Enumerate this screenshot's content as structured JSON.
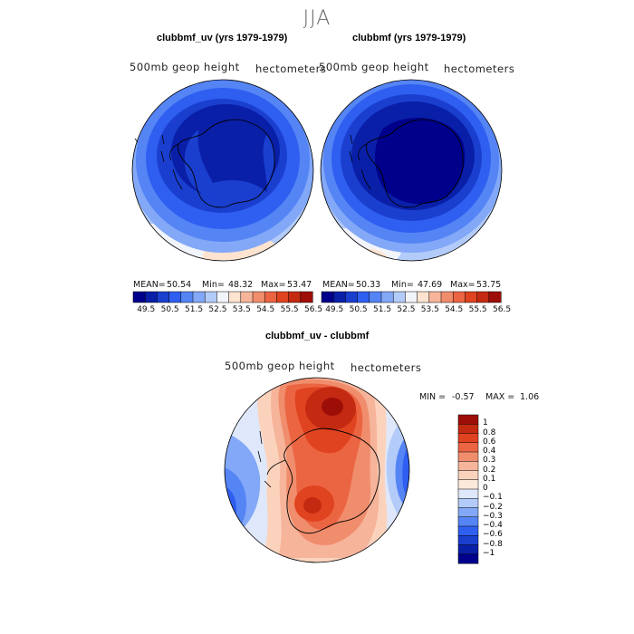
{
  "page": {
    "title": "JJA"
  },
  "panels": [
    {
      "title": "clubbmf_uv (yrs 1979-1979)",
      "field_label": "500mb  geop  height",
      "units": "hectometers",
      "stats": {
        "mean_label": "MEAN=",
        "mean": "50.54",
        "min_label": "Min=",
        "min": "48.32",
        "max_label": "Max=",
        "max": "53.47"
      }
    },
    {
      "title": "clubbmf (yrs 1979-1979)",
      "field_label": "500mb  geop  height",
      "units": "hectometers",
      "stats": {
        "mean_label": "MEAN=",
        "mean": "50.33",
        "min_label": "Min=",
        "min": "47.69",
        "max_label": "Max=",
        "max": "53.75"
      }
    }
  ],
  "top_colorbar": {
    "colors": [
      "#00008b",
      "#0a1fa8",
      "#1a3fcf",
      "#2f5ff0",
      "#5584f5",
      "#82a8f7",
      "#b3cbf9",
      "#f2f4fb",
      "#fde3d0",
      "#f6b49a",
      "#f08d6d",
      "#ec6543",
      "#e0431f",
      "#c42a12",
      "#9e0e08"
    ],
    "ticks": [
      "49.5",
      "50.5",
      "51.5",
      "52.5",
      "53.5",
      "54.5",
      "55.5",
      "56.5"
    ]
  },
  "diff_panel": {
    "title": "clubbmf_uv - clubbmf",
    "field_label": "500mb  geop  height",
    "units": "hectometers",
    "stats": {
      "min_label": "MIN =",
      "min": "-0.57",
      "max_label": "MAX =",
      "max": "1.06"
    },
    "colorbar": {
      "colors": [
        "#9e0e08",
        "#c42a12",
        "#e0431f",
        "#ec6543",
        "#f08d6d",
        "#f6b49a",
        "#fbd3bd",
        "#fde9db",
        "#dfe8fa",
        "#b3cbf9",
        "#82a8f7",
        "#5584f5",
        "#2f5ff0",
        "#1a3fcf",
        "#0a1fa8",
        "#00008b"
      ],
      "labels": [
        "1",
        "0.8",
        "0.6",
        "0.4",
        "0.3",
        "0.2",
        "0.1",
        "0",
        "−0.1",
        "−0.2",
        "−0.3",
        "−0.4",
        "−0.6",
        "−0.8",
        "−1"
      ]
    }
  },
  "colors": {
    "outline": "#000000",
    "title_gray": "#666666"
  }
}
